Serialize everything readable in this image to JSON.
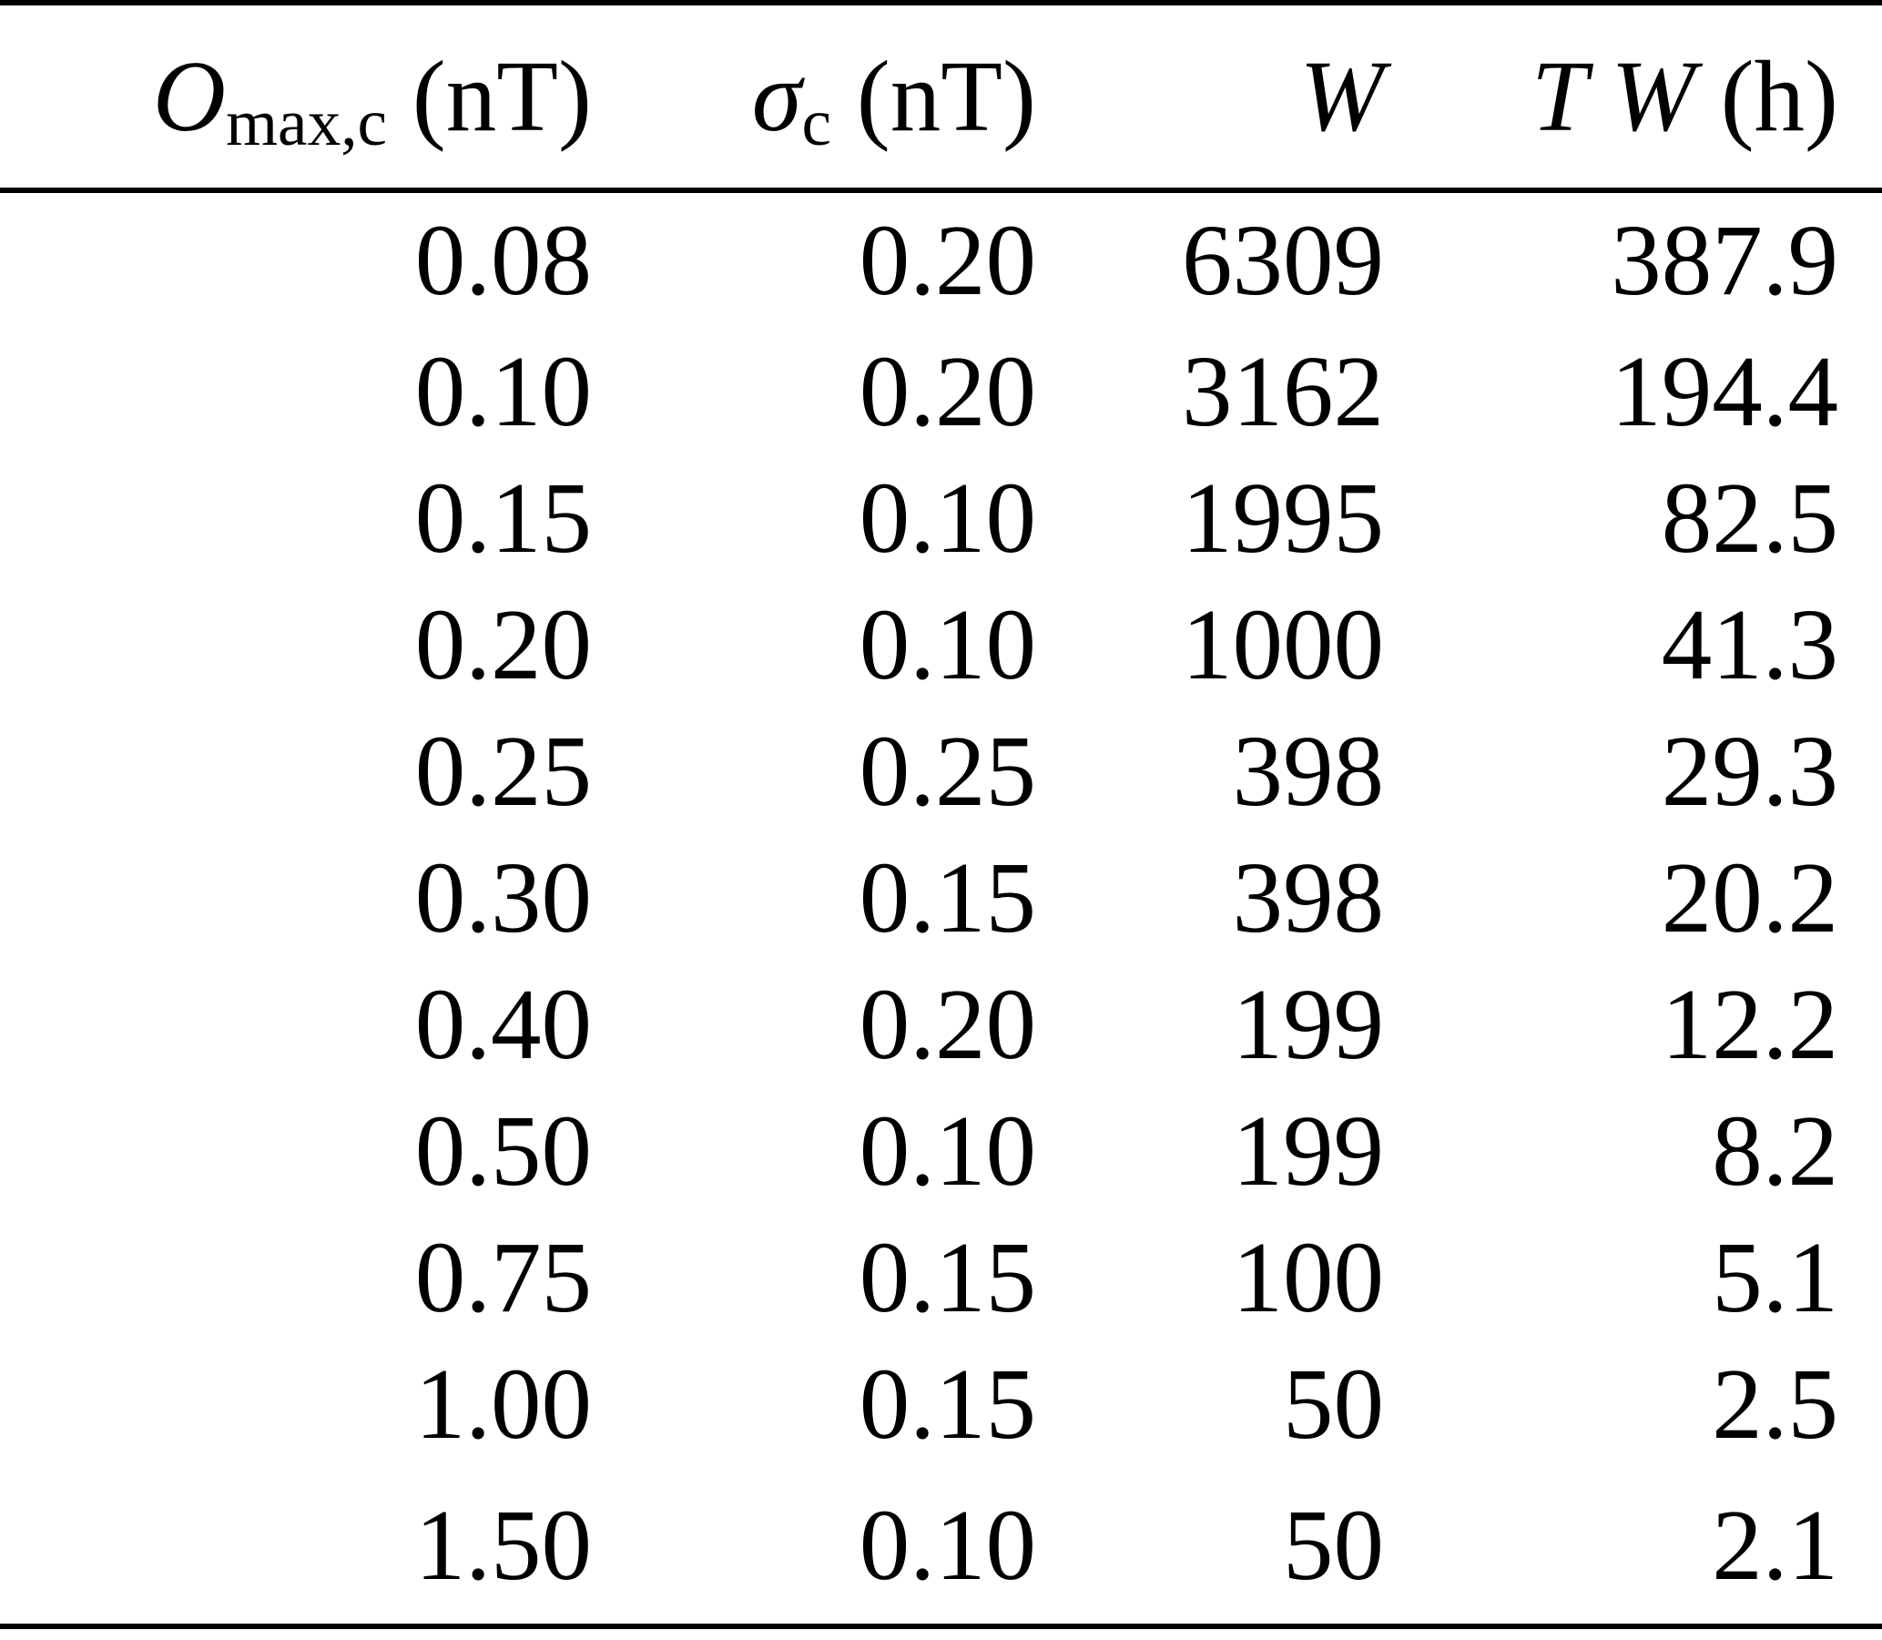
{
  "page": {
    "background_color": "#ffffff",
    "text_color": "#000000",
    "rule_color": "#000000"
  },
  "table": {
    "columns": [
      {
        "id": "o-max-c",
        "plain_label": "O_max,c (nT)",
        "segments": [
          {
            "text": "O",
            "style": "italic"
          },
          {
            "text": "max,c",
            "style": "sub"
          },
          {
            "text": " (nT)",
            "style": "normal"
          }
        ]
      },
      {
        "id": "sigma-c",
        "plain_label": "σ_c (nT)",
        "segments": [
          {
            "text": "σ",
            "style": "italic"
          },
          {
            "text": "c",
            "style": "sub"
          },
          {
            "text": " (nT)",
            "style": "normal"
          }
        ]
      },
      {
        "id": "w",
        "plain_label": "W",
        "segments": [
          {
            "text": "W",
            "style": "italic"
          }
        ]
      },
      {
        "id": "tw-h",
        "plain_label": "T W (h)",
        "segments": [
          {
            "text": "T W",
            "style": "italic"
          },
          {
            "text": " (h)",
            "style": "normal"
          }
        ]
      }
    ],
    "rows": [
      [
        "0.08",
        "0.20",
        "6309",
        "387.9"
      ],
      [
        "0.10",
        "0.20",
        "3162",
        "194.4"
      ],
      [
        "0.15",
        "0.10",
        "1995",
        "82.5"
      ],
      [
        "0.20",
        "0.10",
        "1000",
        "41.3"
      ],
      [
        "0.25",
        "0.25",
        "398",
        "29.3"
      ],
      [
        "0.30",
        "0.15",
        "398",
        "20.2"
      ],
      [
        "0.40",
        "0.20",
        "199",
        "12.2"
      ],
      [
        "0.50",
        "0.10",
        "199",
        "8.2"
      ],
      [
        "0.75",
        "0.15",
        "100",
        "5.1"
      ],
      [
        "1.00",
        "0.15",
        "50",
        "2.5"
      ],
      [
        "1.50",
        "0.10",
        "50",
        "2.1"
      ]
    ]
  },
  "chart_data": {
    "type": "table",
    "columns": [
      "O_max,c (nT)",
      "σ_c (nT)",
      "W",
      "T W (h)"
    ],
    "rows": [
      [
        0.08,
        0.2,
        6309,
        387.9
      ],
      [
        0.1,
        0.2,
        3162,
        194.4
      ],
      [
        0.15,
        0.1,
        1995,
        82.5
      ],
      [
        0.2,
        0.1,
        1000,
        41.3
      ],
      [
        0.25,
        0.25,
        398,
        29.3
      ],
      [
        0.3,
        0.15,
        398,
        20.2
      ],
      [
        0.4,
        0.2,
        199,
        12.2
      ],
      [
        0.5,
        0.1,
        199,
        8.2
      ],
      [
        0.75,
        0.15,
        100,
        5.1
      ],
      [
        1.0,
        0.15,
        50,
        2.5
      ],
      [
        1.5,
        0.1,
        50,
        2.1
      ]
    ]
  }
}
